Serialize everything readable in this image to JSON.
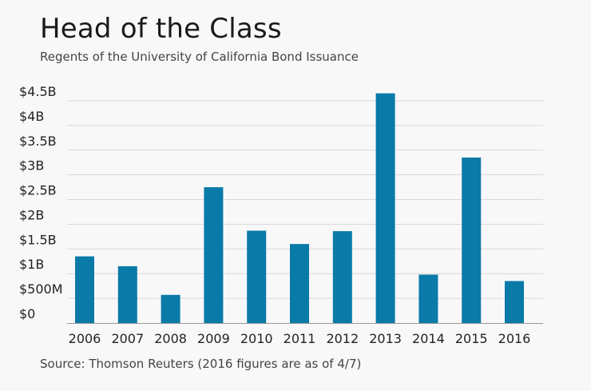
{
  "chart_data": {
    "type": "bar",
    "title": "Head of the Class",
    "subtitle": "Regents of the University of California Bond Issuance",
    "source": "Source: Thomson Reuters (2016 figures are as of 4/7)",
    "categories": [
      "2006",
      "2007",
      "2008",
      "2009",
      "2010",
      "2011",
      "2012",
      "2013",
      "2014",
      "2015",
      "2016"
    ],
    "values": [
      1.35,
      1.15,
      0.57,
      2.75,
      1.87,
      1.6,
      1.86,
      4.65,
      0.98,
      3.35,
      0.85
    ],
    "value_unit": "billions USD",
    "yticks": [
      0,
      0.5,
      1,
      1.5,
      2,
      2.5,
      3,
      3.5,
      4,
      4.5
    ],
    "ytick_labels": [
      "$0",
      "$500M",
      "$1B",
      "$1.5B",
      "$2B",
      "$2.5B",
      "$3B",
      "$3.5B",
      "$4B",
      "$4.5B"
    ],
    "ylim": [
      0,
      4.5
    ],
    "xlabel": "",
    "ylabel": "",
    "grid": true,
    "legend": "none",
    "bar_color": "#0a7aa8",
    "grid_color": "#d8d8d8",
    "axis_color": "#999999"
  }
}
